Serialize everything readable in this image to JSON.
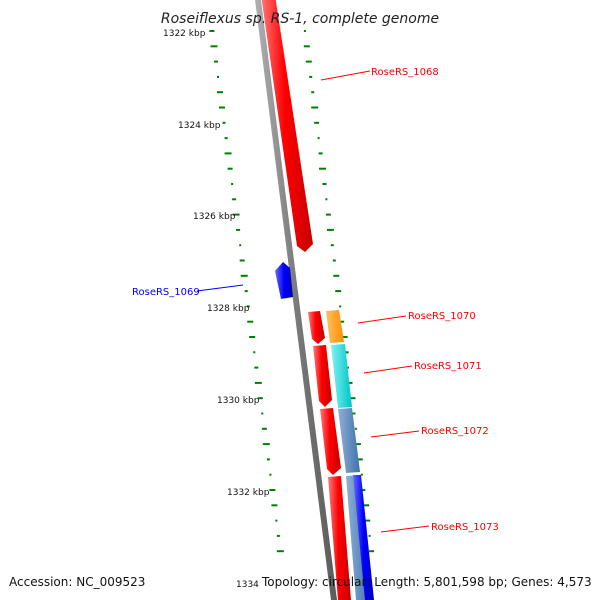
{
  "title": "Roseiflexus sp. RS-1, complete genome",
  "accession_text": "Accession: NC_009523",
  "summary_text": "Topology: circular; Length: 5,801,598 bp; Genes: 4,573",
  "colors": {
    "forward_gene": "#ff0000",
    "reverse_gene": "#0000ff",
    "backbone": "#808080",
    "gc_marks": "#008000"
  },
  "ticks": [
    {
      "label": "1322 kbp",
      "kbp": 1322
    },
    {
      "label": "1324 kbp",
      "kbp": 1324
    },
    {
      "label": "1326 kbp",
      "kbp": 1326
    },
    {
      "label": "1328 kbp",
      "kbp": 1328
    },
    {
      "label": "1330 kbp",
      "kbp": 1330
    },
    {
      "label": "1332 kbp",
      "kbp": 1332
    },
    {
      "label": "1334",
      "kbp": 1334
    }
  ],
  "gene_labels": [
    {
      "name": "RoseRS_1068",
      "strand": "forward"
    },
    {
      "name": "RoseRS_1069",
      "strand": "reverse"
    },
    {
      "name": "RoseRS_1070",
      "strand": "forward"
    },
    {
      "name": "RoseRS_1071",
      "strand": "forward"
    },
    {
      "name": "RoseRS_1072",
      "strand": "forward"
    },
    {
      "name": "RoseRS_1073",
      "strand": "forward"
    }
  ]
}
